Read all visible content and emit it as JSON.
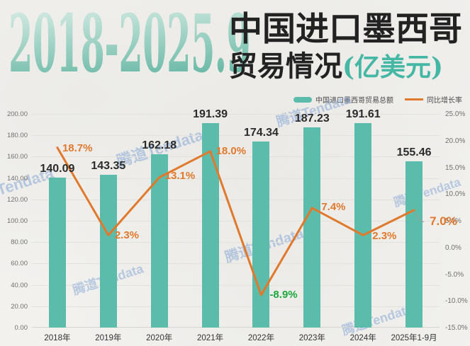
{
  "header": {
    "year_range": "2018-2025.9",
    "title_line1": "中国进口墨西哥",
    "title_line2": "贸易情况",
    "title_unit": "(亿美元)"
  },
  "legend": {
    "total_label": "中国进口墨西哥贸易总额",
    "growth_label": "同比增长率"
  },
  "watermark": {
    "text": "腾道Tendata",
    "color": "#7ca0d4"
  },
  "colors": {
    "bar_teal": "#5cbcab",
    "line_orange": "#e0792c",
    "negative_green": "#1ba83e",
    "title_teal": "#45b8a5"
  },
  "chart_data": {
    "type": "combo",
    "categories": [
      "2018年",
      "2019年",
      "2020年",
      "2021年",
      "2022年",
      "2023年",
      "2024年",
      "2025年1-9月"
    ],
    "series": [
      {
        "name": "中国进口墨西哥贸易总额",
        "chart_type": "bar",
        "axis": "left",
        "color": "#5cbcab",
        "values": [
          140.09,
          143.35,
          162.18,
          191.39,
          174.34,
          187.23,
          191.61,
          155.46
        ],
        "labels": [
          "140.09",
          "143.35",
          "162.18",
          "191.39",
          "174.34",
          "187.23",
          "191.61",
          "155.46"
        ]
      },
      {
        "name": "同比增长率",
        "chart_type": "line",
        "axis": "right",
        "color": "#e0792c",
        "values": [
          18.7,
          2.3,
          13.1,
          18.0,
          -8.9,
          7.4,
          2.3,
          7.0
        ],
        "labels": [
          "18.7%",
          "2.3%",
          "13.1%",
          "18.0%",
          "-8.9%",
          "7.4%",
          "2.3%",
          "7.0%"
        ],
        "label_colors": [
          "#e0792c",
          "#e0792c",
          "#e0792c",
          "#e0792c",
          "#1ba83e",
          "#e0792c",
          "#e0792c",
          "#e0792c"
        ]
      }
    ],
    "left_axis": {
      "min": 0,
      "max": 200,
      "ticks": [
        "200.00",
        "180.00",
        "160.00",
        "140.00",
        "120.00",
        "100.00",
        "80.00",
        "60.00",
        "40.00",
        "20.00",
        "0.00"
      ]
    },
    "right_axis": {
      "min": -15,
      "max": 25,
      "ticks": [
        "25.0%",
        "20.0%",
        "15.0%",
        "10.0%",
        "5.0%",
        "0.0%",
        "-5.0%",
        "-10.0%",
        "-15.0%"
      ]
    },
    "grid": true,
    "legend_position": "top-right",
    "title": "2018-2025.9 中国进口墨西哥贸易情况(亿美元)"
  }
}
